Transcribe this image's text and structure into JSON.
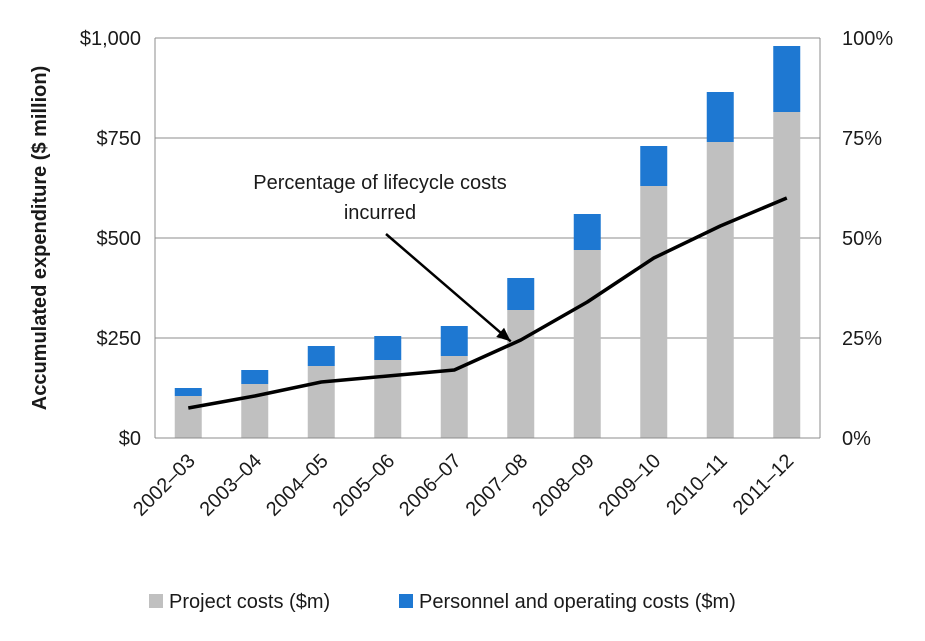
{
  "chart_data": {
    "type": "bar",
    "stacked": true,
    "title": "",
    "xlabel": "",
    "ylabel": "Accumulated expenditure ($ million)",
    "categories": [
      "2002–03",
      "2003–04",
      "2004–05",
      "2005–06",
      "2006–07",
      "2007–08",
      "2008–09",
      "2009–10",
      "2010–11",
      "2011–12"
    ],
    "ylim": [
      0,
      1000
    ],
    "y_ticks": [
      "$0",
      "$250",
      "$500",
      "$750",
      "$1,000"
    ],
    "y2lim": [
      0,
      1
    ],
    "y2_ticks": [
      "0%",
      "25%",
      "50%",
      "75%",
      "100%"
    ],
    "grid": true,
    "legend_position": "bottom",
    "series": [
      {
        "name": "Project costs ($m)",
        "type": "bar",
        "color": "#c0c0c0",
        "values": [
          105,
          135,
          180,
          195,
          205,
          320,
          470,
          630,
          740,
          815
        ]
      },
      {
        "name": "Personnel and operating costs ($m)",
        "type": "bar",
        "color": "#1e78d2",
        "values": [
          20,
          35,
          50,
          60,
          75,
          80,
          90,
          100,
          125,
          165
        ]
      },
      {
        "name": "Percentage of lifecycle costs incurred",
        "type": "line",
        "axis": "right",
        "color": "#000000",
        "values": [
          0.075,
          0.105,
          0.14,
          0.155,
          0.17,
          0.245,
          0.34,
          0.45,
          0.53,
          0.6
        ]
      }
    ],
    "annotation": {
      "lines": [
        "Percentage of lifecycle costs",
        "incurred"
      ],
      "points_to_category": "2007–08"
    }
  }
}
